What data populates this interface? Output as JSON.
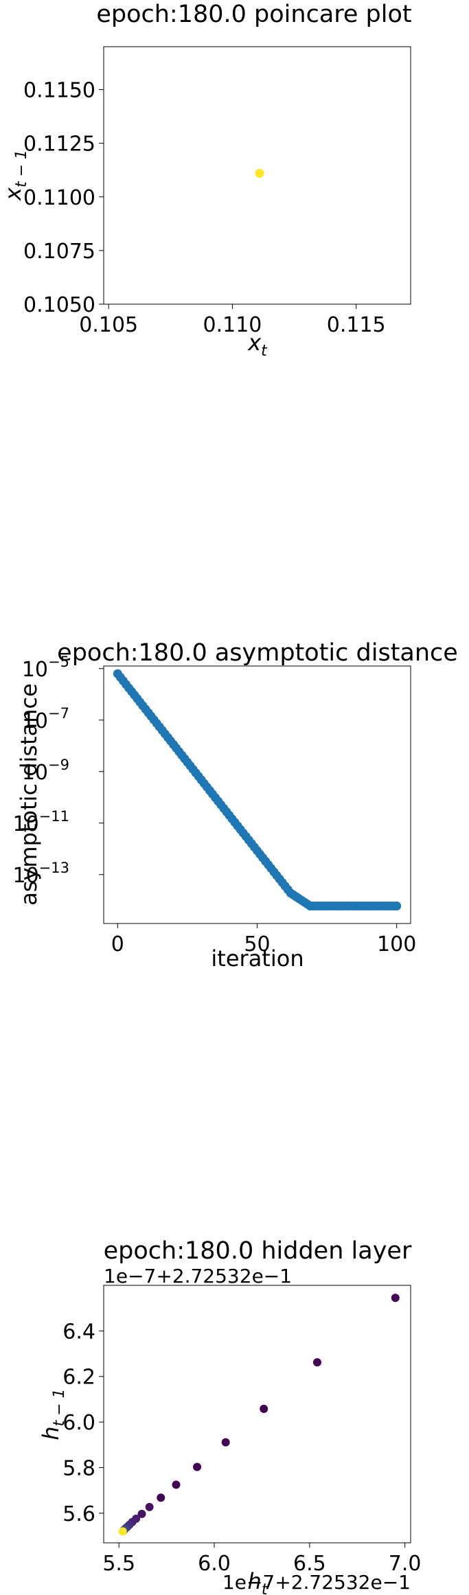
{
  "chart_data": [
    {
      "type": "scatter",
      "title": "epoch:180.0 poincare plot",
      "xlabel": "x",
      "xlabel_sub": "t",
      "ylabel": "x",
      "ylabel_sub": "t − 1",
      "xlim": [
        0.1048,
        0.1172
      ],
      "ylim": [
        0.105,
        0.117
      ],
      "xticks": [
        0.105,
        0.11,
        0.115
      ],
      "xtick_labels": [
        "0.105",
        "0.110",
        "0.115"
      ],
      "yticks": [
        0.105,
        0.1075,
        0.11,
        0.1125,
        0.115
      ],
      "ytick_labels": [
        "0.1050",
        "0.1075",
        "0.1100",
        "0.1125",
        "0.1150"
      ],
      "points": [
        {
          "x": 0.1111,
          "y": 0.1111,
          "color": "#fde725"
        }
      ]
    },
    {
      "type": "scatter",
      "title": "epoch:180.0 asymptotic distance",
      "xlabel": "iteration",
      "ylabel": "asymptotic distance",
      "yscale": "log",
      "xlim": [
        -5,
        105
      ],
      "ylim_log10": [
        -14.9,
        -4.9
      ],
      "xticks": [
        0,
        50,
        100
      ],
      "xtick_labels": [
        "0",
        "50",
        "100"
      ],
      "yticks_log10": [
        -5,
        -7,
        -9,
        -11,
        -13
      ],
      "ytick_labels": [
        "10",
        "10",
        "10",
        "10",
        "10"
      ],
      "ytick_exponents": [
        "−5",
        "−7",
        "−9",
        "−11",
        "−13"
      ],
      "color": "#1f77b4",
      "series": [
        {
          "x_start": 0,
          "x_end": 100,
          "pieces": [
            {
              "from": 0,
              "to": 5,
              "log10_start": -5.2,
              "log10_end": -5.89
            },
            {
              "from": 5,
              "to": 62,
              "log10_start": -5.89,
              "log10_end": -13.72
            },
            {
              "from": 62,
              "to": 69,
              "log10_start": -13.72,
              "log10_end": -14.22
            },
            {
              "from": 69,
              "to": 100,
              "log10_start": -14.22,
              "log10_end": -14.22
            }
          ]
        }
      ]
    },
    {
      "type": "scatter",
      "title": "epoch:180.0 hidden layer",
      "xlabel": "h",
      "xlabel_sub": "t",
      "ylabel": "h",
      "ylabel_sub": "t − 1",
      "x_offset_text": "1e−7+2.72532e−1",
      "y_offset_text": "1e−7+2.72532e−1",
      "xlim": [
        5.42,
        7.03
      ],
      "ylim": [
        5.47,
        6.6
      ],
      "xticks": [
        5.5,
        6.0,
        6.5,
        7.0
      ],
      "xtick_labels": [
        "5.5",
        "6.0",
        "6.5",
        "7.0"
      ],
      "yticks": [
        5.6,
        5.8,
        6.0,
        6.2,
        6.4
      ],
      "ytick_labels": [
        "5.6",
        "5.8",
        "6.0",
        "6.2",
        "6.4"
      ],
      "points": [
        {
          "x": 6.95,
          "y": 6.545,
          "color": "#440154"
        },
        {
          "x": 6.54,
          "y": 6.262,
          "color": "#440154"
        },
        {
          "x": 6.26,
          "y": 6.058,
          "color": "#440154"
        },
        {
          "x": 6.06,
          "y": 5.911,
          "color": "#440154"
        },
        {
          "x": 5.91,
          "y": 5.803,
          "color": "#440154"
        },
        {
          "x": 5.8,
          "y": 5.725,
          "color": "#440154"
        },
        {
          "x": 5.72,
          "y": 5.668,
          "color": "#440154"
        },
        {
          "x": 5.66,
          "y": 5.627,
          "color": "#471164"
        },
        {
          "x": 5.62,
          "y": 5.597,
          "color": "#471164"
        },
        {
          "x": 5.59,
          "y": 5.576,
          "color": "#481f70"
        },
        {
          "x": 5.57,
          "y": 5.561,
          "color": "#482373"
        },
        {
          "x": 5.555,
          "y": 5.549,
          "color": "#472c7a"
        },
        {
          "x": 5.545,
          "y": 5.541,
          "color": "#46337f"
        },
        {
          "x": 5.537,
          "y": 5.535,
          "color": "#443a83"
        },
        {
          "x": 5.531,
          "y": 5.53,
          "color": "#424086"
        },
        {
          "x": 5.527,
          "y": 5.527,
          "color": "#3f4788"
        },
        {
          "x": 5.524,
          "y": 5.524,
          "color": "#3c4f8a"
        },
        {
          "x": 5.522,
          "y": 5.522,
          "color": "#39558c"
        },
        {
          "x": 5.52,
          "y": 5.52,
          "color": "#fde725"
        }
      ]
    }
  ]
}
